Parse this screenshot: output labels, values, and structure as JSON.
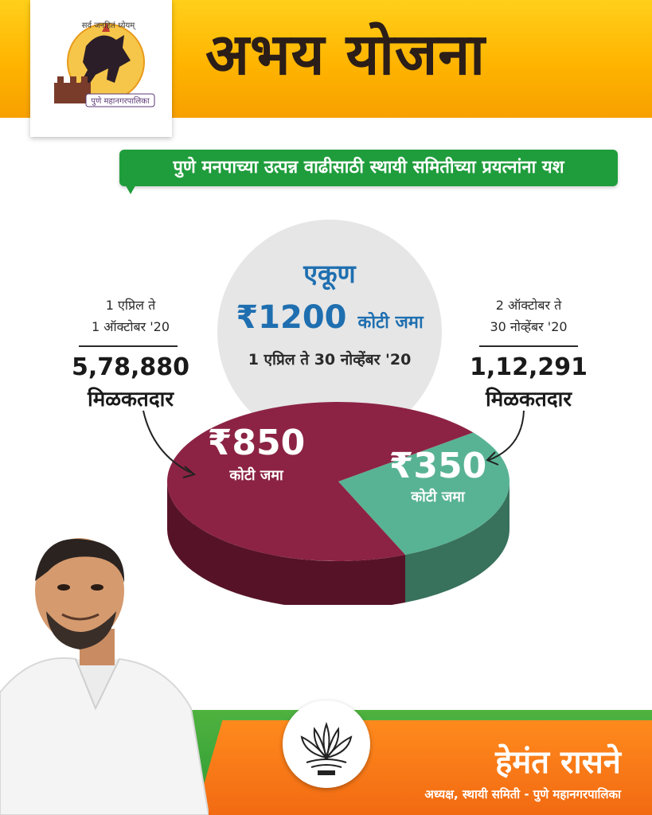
{
  "header": {
    "title": "अभय योजना",
    "logo_text_top": "सर्व जनहितं ध्येयम्",
    "logo_text_bottom": "पुणे महानगरपालिका"
  },
  "ribbon": {
    "text": "पुणे मनपाच्या उत्पन्न वाढीसाठी स्थायी समितीच्या प्रयत्नांना यश"
  },
  "total": {
    "heading": "एकूण",
    "amount": "₹1200",
    "amount_suffix": "कोटी जमा",
    "period": "1 एप्रिल ते 30 नोव्हेंबर '20"
  },
  "left_info": {
    "period_line1": "1 एप्रिल ते",
    "period_line2": "1 ऑक्टोबर '20",
    "count": "5,78,880",
    "unit": "मिळकतदार"
  },
  "right_info": {
    "period_line1": "2 ऑक्टोबर ते",
    "period_line2": "30 नोव्हेंबर '20",
    "count": "1,12,291",
    "unit": "मिळकतदार"
  },
  "chart_data": {
    "type": "pie",
    "title": "",
    "slices": [
      {
        "label": "₹850",
        "sublabel": "कोटी जमा",
        "value": 850,
        "color": "#8c2344",
        "side_color": "#561327"
      },
      {
        "label": "₹350",
        "sublabel": "कोटी जमा",
        "value": 350,
        "color": "#58b394",
        "side_color": "#38715c"
      }
    ],
    "total": 1200
  },
  "footer": {
    "name": "हेमंत रासने",
    "role": "अध्यक्ष, स्थायी समिती - पुणे महानगरपालिका"
  },
  "colors": {
    "header_yellow": "#ffb400",
    "ribbon_green": "#1f9d3c",
    "total_blue": "#1f6fb0",
    "footer_orange": "#f26a12",
    "footer_green": "#2c9a35"
  }
}
